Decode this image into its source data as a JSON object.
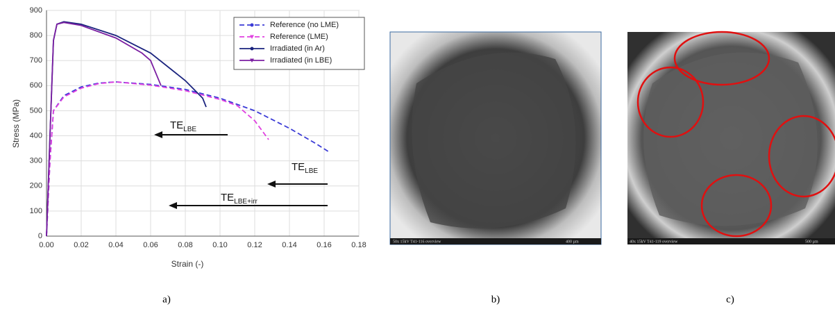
{
  "chart_data": {
    "type": "line",
    "xlabel": "Strain (-)",
    "ylabel": "Stress (MPa)",
    "xlim": [
      0,
      0.18
    ],
    "xticks": [
      {
        "value": 0,
        "label": "0.00"
      },
      {
        "value": 0.02,
        "label": "0.02"
      },
      {
        "value": 0.04,
        "label": "0.04"
      },
      {
        "value": 0.06,
        "label": "0.06"
      },
      {
        "value": 0.08,
        "label": "0.08"
      },
      {
        "value": 0.1,
        "label": "0.10"
      },
      {
        "value": 0.12,
        "label": "0.12"
      },
      {
        "value": 0.14,
        "label": "0.14"
      },
      {
        "value": 0.16,
        "label": "0.16"
      },
      {
        "value": 0.18,
        "label": "0.18"
      }
    ],
    "ylim": [
      0,
      900
    ],
    "yticks": [
      0,
      100,
      200,
      300,
      400,
      500,
      600,
      700,
      800,
      900
    ],
    "grid": true,
    "legend": "upper right",
    "series": [
      {
        "name": "Reference (no LME)",
        "color": "#3a3ad6",
        "dash": true,
        "marker": "circle",
        "x": [
          0,
          0.002,
          0.004,
          0.01,
          0.02,
          0.03,
          0.04,
          0.06,
          0.08,
          0.1,
          0.12,
          0.14,
          0.155,
          0.163
        ],
        "values": [
          0,
          300,
          500,
          560,
          595,
          610,
          615,
          605,
          585,
          550,
          500,
          430,
          370,
          335
        ]
      },
      {
        "name": "Reference (LME)",
        "color": "#e040e0",
        "dash": true,
        "marker": "triangle",
        "x": [
          0,
          0.002,
          0.004,
          0.01,
          0.02,
          0.03,
          0.04,
          0.06,
          0.08,
          0.1,
          0.11,
          0.12,
          0.128
        ],
        "values": [
          0,
          300,
          500,
          555,
          590,
          608,
          615,
          602,
          580,
          545,
          520,
          460,
          385
        ]
      },
      {
        "name": "Irradiated (in Ar)",
        "color": "#1a237e",
        "dash": false,
        "marker": "circle",
        "x": [
          0,
          0.002,
          0.004,
          0.006,
          0.01,
          0.02,
          0.04,
          0.06,
          0.08,
          0.09,
          0.092
        ],
        "values": [
          0,
          400,
          780,
          845,
          855,
          845,
          800,
          730,
          620,
          550,
          515
        ]
      },
      {
        "name": "Irradiated (in LBE)",
        "color": "#7b1fa2",
        "dash": false,
        "marker": "triangle",
        "x": [
          0,
          0.002,
          0.004,
          0.006,
          0.01,
          0.02,
          0.04,
          0.055,
          0.06,
          0.066
        ],
        "values": [
          0,
          400,
          780,
          845,
          852,
          840,
          790,
          730,
          700,
          600
        ]
      }
    ],
    "annotations": [
      {
        "text": "TE",
        "sub": "LBE"
      },
      {
        "text": "TE",
        "sub": "LBE"
      },
      {
        "text": "TE",
        "sub": "LBE+irr"
      }
    ]
  },
  "panels": [
    {
      "label": "a)"
    },
    {
      "label": "b)",
      "caption": "50x 15kV T41-116 overview",
      "scale": "400 µm"
    },
    {
      "label": "c)",
      "caption": "40x 15kV T41-119 overview",
      "scale": "500 µm"
    }
  ]
}
